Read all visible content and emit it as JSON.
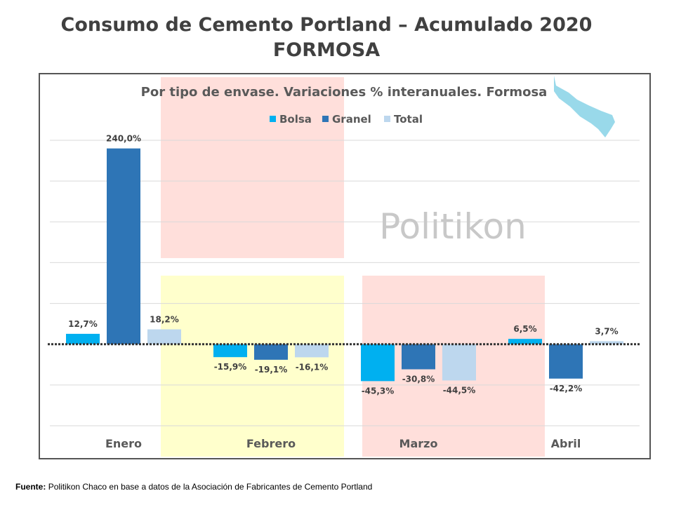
{
  "title": "Consumo de Cemento Portland – Acumulado 2020",
  "subtitle": "FORMOSA",
  "watermark": "Politikon",
  "source": {
    "label": "Fuente:",
    "text": "Politikon Chaco en base a datos de la Asociación de Fabricantes de Cemento Portland"
  },
  "chart_data": {
    "type": "bar",
    "title": "Por tipo de envase. Variaciones % interanuales. Formosa",
    "categories": [
      "Enero",
      "Febrero",
      "Marzo",
      "Abril"
    ],
    "series": [
      {
        "name": "Bolsa",
        "color": "#00B0F0",
        "values": [
          12.7,
          -15.9,
          -45.3,
          6.5
        ],
        "labels": [
          "12,7%",
          "-15,9%",
          "-45,3%",
          "6,5%"
        ]
      },
      {
        "name": "Granel",
        "color": "#2E75B6",
        "values": [
          240.0,
          -19.1,
          -30.8,
          -42.2
        ],
        "labels": [
          "240,0%",
          "-19,1%",
          "-30,8%",
          "-42,2%"
        ]
      },
      {
        "name": "Total",
        "color": "#BDD7EE",
        "values": [
          18.2,
          -16.1,
          -44.5,
          3.7
        ],
        "labels": [
          "18,2%",
          "-16,1%",
          "-44,5%",
          "3,7%"
        ]
      }
    ],
    "ylim": [
      -100,
      250
    ],
    "grid": true,
    "legend": "top-center",
    "zero_line": "dotted",
    "highlight_colors": {
      "pink": "#FFDFDB",
      "yellow": "#FFFFCC"
    },
    "map_color": "#99D9EA"
  }
}
